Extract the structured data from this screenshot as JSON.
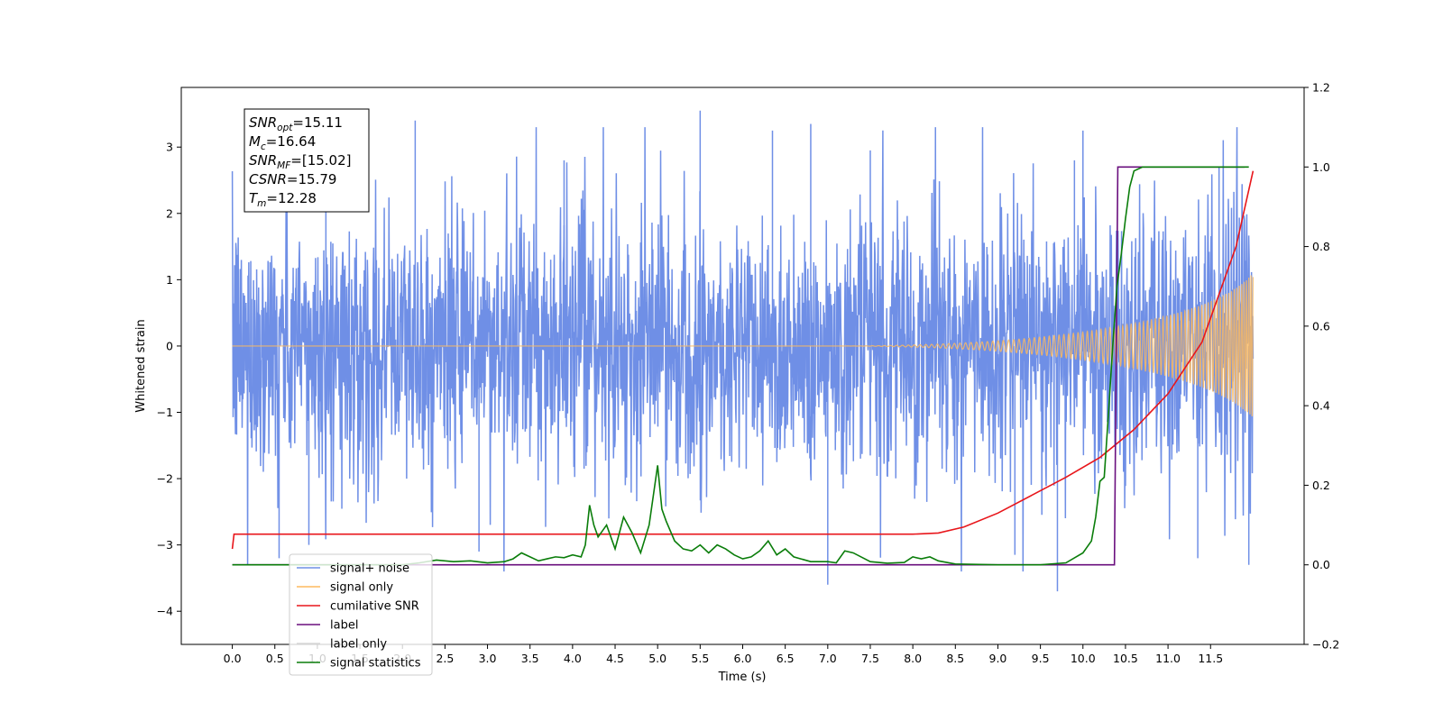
{
  "chart_data": {
    "type": "line",
    "title": "",
    "xlabel": "Time (s)",
    "ylabel": "Whitened strain",
    "xlim": [
      -0.6,
      12.6
    ],
    "ylim": [
      -4.5,
      3.9
    ],
    "ylim_right": [
      -0.2,
      1.2
    ],
    "x_ticks": [
      "0.0",
      "0.5",
      "1.0",
      "1.5",
      "2.0",
      "2.5",
      "3.0",
      "3.5",
      "4.0",
      "4.5",
      "5.0",
      "5.5",
      "6.0",
      "6.5",
      "7.0",
      "7.5",
      "8.0",
      "8.5",
      "9.0",
      "9.5",
      "10.0",
      "10.5",
      "11.0",
      "11.5"
    ],
    "y_ticks_left": [
      "3",
      "2",
      "1",
      "0",
      "−1",
      "−2",
      "−3",
      "−4"
    ],
    "y_ticks_right": [
      "1.2",
      "1.0",
      "0.8",
      "0.6",
      "0.4",
      "0.2",
      "0.0",
      "−0.2"
    ],
    "grid": false,
    "legend_position": "lower-left",
    "annotation": {
      "lines": [
        {
          "main": "SNR",
          "sub": "opt",
          "rest": "=15.11"
        },
        {
          "main": "M",
          "sub": "c",
          "rest": "=16.64"
        },
        {
          "main": "SNR",
          "sub": "MF",
          "rest": "=[15.02]"
        },
        {
          "main": "CSNR",
          "sub": "",
          "rest": "=15.79"
        },
        {
          "main": "T",
          "sub": "m",
          "rest": "=12.28"
        }
      ]
    },
    "series": [
      {
        "name": "signal+ noise",
        "color": "#6f8fe6",
        "axis": "left",
        "style": "noise",
        "x_range": [
          0.0,
          12.0
        ],
        "base_std": 1.0,
        "peaks": [
          {
            "x": 0.55,
            "y": -3.2
          },
          {
            "x": 0.9,
            "y": -3.0
          },
          {
            "x": 1.1,
            "y": 2.6
          },
          {
            "x": 2.15,
            "y": 3.4
          },
          {
            "x": 2.9,
            "y": -3.1
          },
          {
            "x": 3.9,
            "y": 2.8
          },
          {
            "x": 5.5,
            "y": 3.55
          },
          {
            "x": 6.35,
            "y": 3.25
          },
          {
            "x": 6.8,
            "y": 3.35
          },
          {
            "x": 7.0,
            "y": -3.6
          },
          {
            "x": 7.5,
            "y": 2.95
          },
          {
            "x": 9.2,
            "y": -3.15
          },
          {
            "x": 9.7,
            "y": -3.7
          },
          {
            "x": 9.9,
            "y": 2.8
          },
          {
            "x": 10.0,
            "y": 3.25
          },
          {
            "x": 11.35,
            "y": -3.2
          },
          {
            "x": 11.6,
            "y": 2.7
          },
          {
            "x": 11.95,
            "y": -3.3
          }
        ]
      },
      {
        "name": "signal only",
        "color": "#fdba5e",
        "axis": "left",
        "style": "chirp",
        "x_range": [
          0.0,
          12.0
        ],
        "amplitude_end": 1.1,
        "visible_from": 8.0
      },
      {
        "name": "cumilative SNR",
        "color": "#e8161b",
        "axis": "right",
        "x": [
          0.0,
          0.02,
          0.5,
          2.0,
          4.0,
          6.0,
          7.0,
          8.0,
          8.3,
          8.6,
          9.0,
          9.4,
          9.8,
          10.2,
          10.6,
          11.0,
          11.4,
          11.8,
          12.0
        ],
        "values": [
          0.04,
          0.077,
          0.077,
          0.077,
          0.077,
          0.077,
          0.077,
          0.077,
          0.08,
          0.095,
          0.13,
          0.175,
          0.22,
          0.27,
          0.34,
          0.43,
          0.56,
          0.8,
          0.99
        ]
      },
      {
        "name": "label",
        "color": "#6a0f7e",
        "axis": "right",
        "x": [
          0.0,
          10.37,
          10.37,
          10.41,
          11.9
        ],
        "values": [
          0.0,
          0.0,
          0.0,
          1.0,
          1.0
        ]
      },
      {
        "name": "label only",
        "color": "#d8d8d8",
        "axis": "right",
        "x": [],
        "values": []
      },
      {
        "name": "signal statistics",
        "color": "#0a7d0a",
        "axis": "right",
        "x": [
          0.0,
          2.0,
          2.2,
          2.4,
          2.6,
          2.8,
          3.0,
          3.2,
          3.3,
          3.4,
          3.5,
          3.6,
          3.7,
          3.8,
          3.9,
          4.0,
          4.1,
          4.15,
          4.2,
          4.25,
          4.3,
          4.4,
          4.5,
          4.6,
          4.7,
          4.8,
          4.9,
          5.0,
          5.05,
          5.1,
          5.2,
          5.3,
          5.4,
          5.5,
          5.6,
          5.7,
          5.8,
          5.9,
          6.0,
          6.1,
          6.2,
          6.3,
          6.4,
          6.5,
          6.6,
          6.8,
          7.0,
          7.1,
          7.2,
          7.3,
          7.5,
          7.7,
          7.9,
          8.0,
          8.1,
          8.2,
          8.3,
          8.5,
          9.0,
          9.5,
          9.8,
          10.0,
          10.1,
          10.15,
          10.2,
          10.25,
          10.3,
          10.35,
          10.4,
          10.45,
          10.5,
          10.55,
          10.6,
          10.7,
          10.8,
          11.0,
          11.5,
          11.95
        ],
        "values": [
          0.0,
          0.0,
          0.005,
          0.012,
          0.008,
          0.01,
          0.005,
          0.008,
          0.015,
          0.03,
          0.02,
          0.01,
          0.015,
          0.02,
          0.018,
          0.025,
          0.02,
          0.05,
          0.15,
          0.1,
          0.07,
          0.1,
          0.04,
          0.12,
          0.08,
          0.03,
          0.1,
          0.25,
          0.14,
          0.11,
          0.06,
          0.04,
          0.035,
          0.05,
          0.03,
          0.05,
          0.04,
          0.025,
          0.015,
          0.02,
          0.035,
          0.06,
          0.025,
          0.04,
          0.02,
          0.008,
          0.008,
          0.005,
          0.035,
          0.03,
          0.008,
          0.004,
          0.006,
          0.02,
          0.015,
          0.02,
          0.01,
          0.002,
          0.0,
          0.0,
          0.005,
          0.03,
          0.06,
          0.12,
          0.21,
          0.22,
          0.38,
          0.55,
          0.7,
          0.78,
          0.87,
          0.95,
          0.99,
          1.0,
          1.0,
          1.0,
          1.0,
          1.0
        ]
      }
    ]
  }
}
